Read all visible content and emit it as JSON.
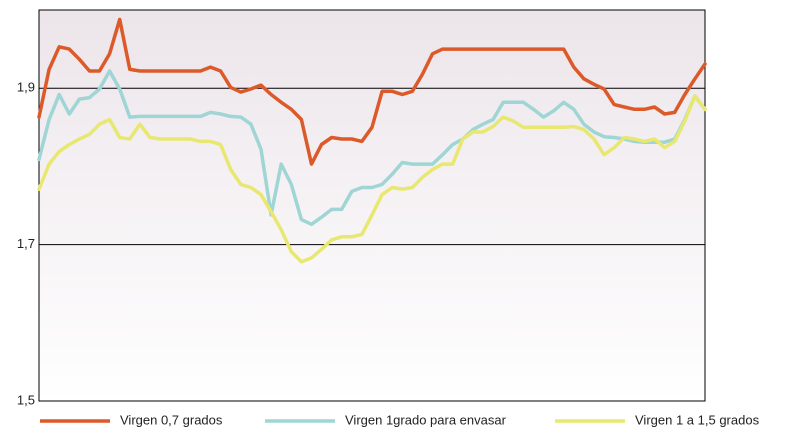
{
  "chart_data": {
    "type": "line",
    "ylim": [
      1.5,
      2.0
    ],
    "yticks": [
      {
        "value": 1.5,
        "label": "1,5"
      },
      {
        "value": 1.7,
        "label": "1,7"
      },
      {
        "value": 1.9,
        "label": "1,9"
      }
    ],
    "grid": true,
    "legend": "bottom",
    "series": [
      {
        "name": "Virgen 0,7 grados",
        "color": "#dc5a2a",
        "values": [
          1.863,
          1.924,
          1.953,
          1.95,
          1.937,
          1.922,
          1.922,
          1.944,
          1.988,
          1.924,
          1.922,
          1.922,
          1.922,
          1.922,
          1.922,
          1.922,
          1.922,
          1.927,
          1.922,
          1.901,
          1.895,
          1.899,
          1.904,
          1.892,
          1.882,
          1.873,
          1.86,
          1.803,
          1.828,
          1.837,
          1.835,
          1.835,
          1.832,
          1.85,
          1.896,
          1.896,
          1.892,
          1.896,
          1.918,
          1.944,
          1.95,
          1.95,
          1.95,
          1.95,
          1.95,
          1.95,
          1.95,
          1.95,
          1.95,
          1.95,
          1.95,
          1.95,
          1.95,
          1.927,
          1.912,
          1.905,
          1.899,
          1.879,
          1.876,
          1.873,
          1.873,
          1.876,
          1.867,
          1.869,
          1.892,
          1.912,
          1.931
        ]
      },
      {
        "name": "Virgen 1grado para envasar",
        "color": "#9fd5d5",
        "values": [
          1.809,
          1.86,
          1.892,
          1.867,
          1.886,
          1.888,
          1.899,
          1.922,
          1.899,
          1.863,
          1.864,
          1.864,
          1.864,
          1.864,
          1.864,
          1.864,
          1.864,
          1.869,
          1.867,
          1.864,
          1.863,
          1.854,
          1.822,
          1.738,
          1.803,
          1.777,
          1.732,
          1.726,
          1.735,
          1.745,
          1.745,
          1.768,
          1.773,
          1.773,
          1.777,
          1.79,
          1.805,
          1.803,
          1.803,
          1.803,
          1.815,
          1.828,
          1.835,
          1.847,
          1.854,
          1.86,
          1.882,
          1.882,
          1.882,
          1.873,
          1.863,
          1.871,
          1.882,
          1.873,
          1.854,
          1.844,
          1.838,
          1.837,
          1.835,
          1.832,
          1.831,
          1.831,
          1.831,
          1.835,
          1.86,
          1.89,
          1.873
        ]
      },
      {
        "name": "Virgen 1 a 1,5 grados",
        "color": "#e8e870",
        "values": [
          1.771,
          1.803,
          1.819,
          1.828,
          1.835,
          1.841,
          1.854,
          1.86,
          1.837,
          1.835,
          1.854,
          1.837,
          1.835,
          1.835,
          1.835,
          1.835,
          1.832,
          1.832,
          1.828,
          1.796,
          1.777,
          1.773,
          1.764,
          1.742,
          1.719,
          1.691,
          1.678,
          1.683,
          1.694,
          1.706,
          1.71,
          1.71,
          1.713,
          1.738,
          1.764,
          1.773,
          1.771,
          1.773,
          1.786,
          1.796,
          1.803,
          1.803,
          1.835,
          1.844,
          1.844,
          1.851,
          1.863,
          1.858,
          1.85,
          1.85,
          1.85,
          1.85,
          1.85,
          1.851,
          1.847,
          1.835,
          1.815,
          1.824,
          1.837,
          1.835,
          1.832,
          1.835,
          1.824,
          1.832,
          1.858,
          1.89,
          1.873
        ]
      }
    ]
  }
}
